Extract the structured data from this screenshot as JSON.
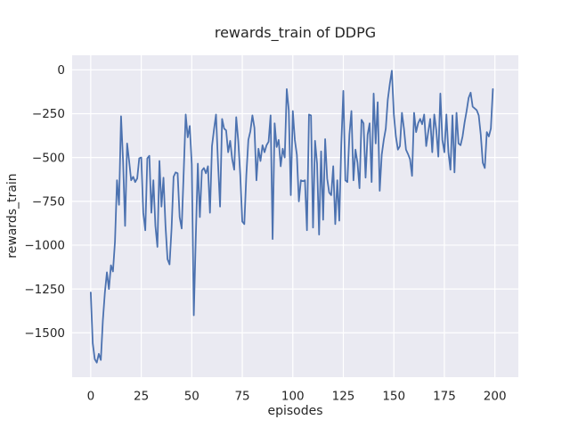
{
  "chart_data": {
    "type": "line",
    "title": "rewards_train of DDPG",
    "xlabel": "episodes",
    "ylabel": "rewards_train",
    "legend_position": "none",
    "grid": true,
    "x_ticks": [
      0,
      25,
      50,
      75,
      100,
      125,
      150,
      175,
      200
    ],
    "y_ticks": [
      0,
      -250,
      -500,
      -750,
      -1000,
      -1250,
      -1500
    ],
    "xlim": [
      -9.2,
      211.6
    ],
    "ylim": [
      -1753,
      83
    ],
    "x_start": 0,
    "x_step": 1,
    "series": [
      {
        "name": "rewards_train",
        "values": [
          -1270,
          -1560,
          -1650,
          -1670,
          -1620,
          -1655,
          -1430,
          -1270,
          -1155,
          -1250,
          -1115,
          -1150,
          -980,
          -630,
          -770,
          -265,
          -520,
          -890,
          -420,
          -520,
          -630,
          -610,
          -640,
          -620,
          -505,
          -500,
          -815,
          -915,
          -505,
          -490,
          -815,
          -630,
          -890,
          -1010,
          -520,
          -780,
          -615,
          -890,
          -1080,
          -1110,
          -905,
          -610,
          -585,
          -590,
          -840,
          -905,
          -585,
          -255,
          -385,
          -320,
          -540,
          -1400,
          -950,
          -535,
          -840,
          -575,
          -560,
          -590,
          -550,
          -815,
          -435,
          -340,
          -255,
          -535,
          -780,
          -280,
          -335,
          -345,
          -470,
          -405,
          -510,
          -570,
          -270,
          -405,
          -600,
          -865,
          -880,
          -600,
          -400,
          -350,
          -260,
          -330,
          -630,
          -450,
          -520,
          -430,
          -470,
          -430,
          -410,
          -260,
          -965,
          -305,
          -440,
          -400,
          -550,
          -450,
          -500,
          -110,
          -230,
          -715,
          -235,
          -400,
          -485,
          -750,
          -630,
          -635,
          -630,
          -915,
          -255,
          -260,
          -900,
          -405,
          -535,
          -940,
          -465,
          -855,
          -395,
          -620,
          -700,
          -715,
          -550,
          -880,
          -630,
          -860,
          -420,
          -120,
          -630,
          -640,
          -370,
          -235,
          -630,
          -455,
          -530,
          -675,
          -285,
          -305,
          -615,
          -370,
          -305,
          -640,
          -135,
          -420,
          -185,
          -690,
          -485,
          -400,
          -335,
          -170,
          -80,
          -5,
          -255,
          -380,
          -455,
          -435,
          -245,
          -335,
          -455,
          -480,
          -510,
          -605,
          -245,
          -355,
          -305,
          -280,
          -310,
          -255,
          -435,
          -355,
          -280,
          -470,
          -255,
          -345,
          -495,
          -135,
          -400,
          -470,
          -255,
          -470,
          -570,
          -260,
          -585,
          -245,
          -420,
          -430,
          -380,
          -300,
          -235,
          -160,
          -130,
          -210,
          -220,
          -230,
          -260,
          -370,
          -530,
          -560,
          -355,
          -380,
          -335,
          -110
        ]
      }
    ],
    "style": {
      "line_color": "#4c72b0",
      "plot_bg": "#eaeaf2",
      "grid_color": "#ffffff",
      "text_color": "#262626",
      "figure_bg": "#ffffff"
    }
  }
}
